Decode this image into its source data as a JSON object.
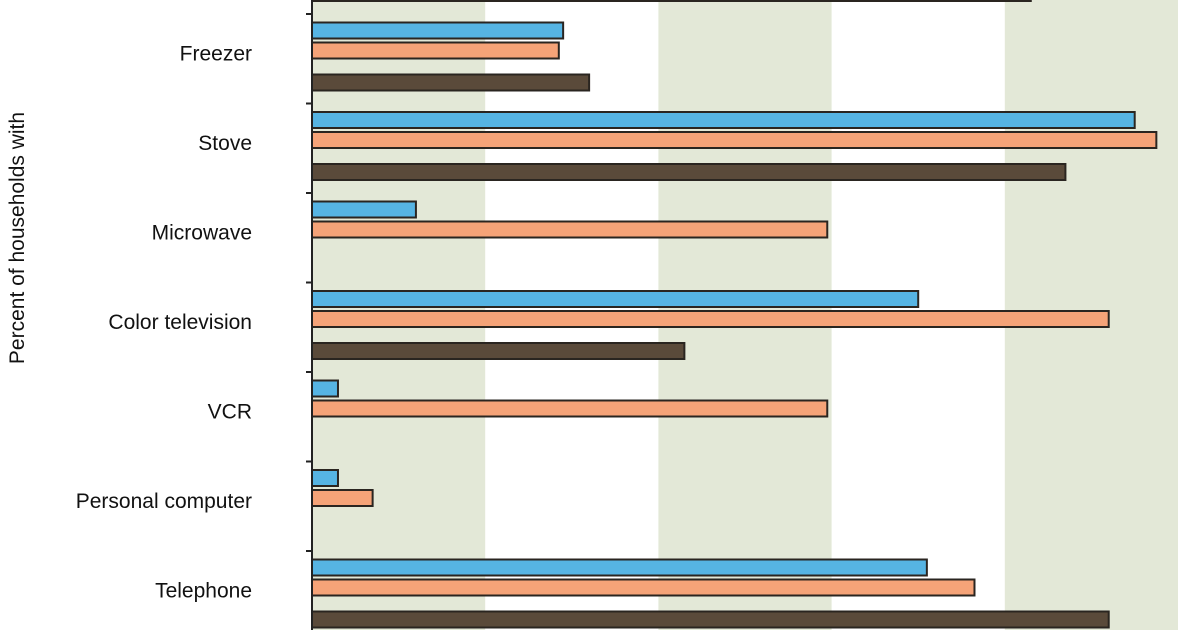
{
  "chart_data": {
    "type": "bar",
    "orientation": "horizontal",
    "ylabel": "Percent of households with",
    "xlim": [
      0,
      100
    ],
    "grid": "alternating vertical bands",
    "categories": [
      "",
      "Freezer",
      "Stove",
      "Microwave",
      "Color television",
      "VCR",
      "Personal computer",
      "Telephone"
    ],
    "series": [
      {
        "color": "#56b4e3",
        "values": [
          null,
          29,
          95,
          12,
          70,
          3,
          3,
          71
        ]
      },
      {
        "color": "#f5a378",
        "values": [
          null,
          28.5,
          97.5,
          59.5,
          92,
          59.5,
          7,
          76.5
        ]
      },
      {
        "color": "#5a4a3a",
        "values": [
          83,
          32,
          87,
          0,
          43,
          0,
          0,
          92
        ]
      }
    ]
  }
}
